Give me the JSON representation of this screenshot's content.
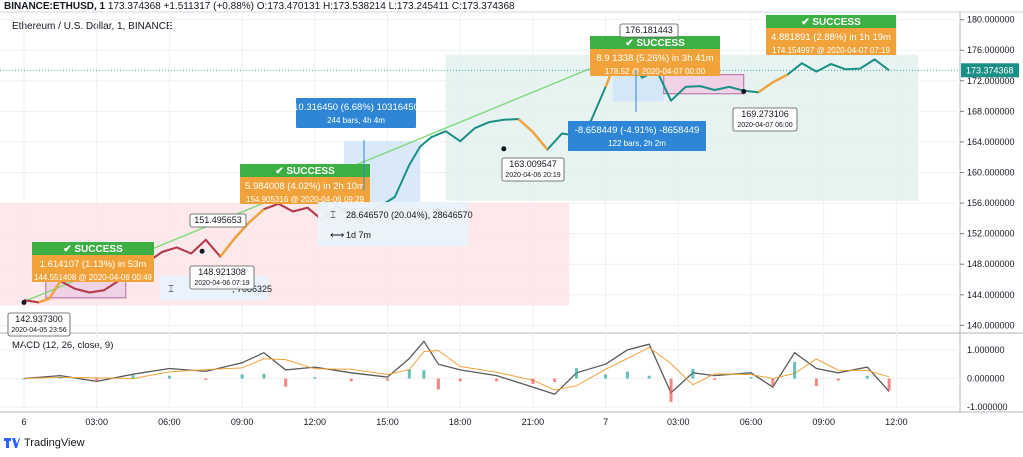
{
  "header": {
    "symbol": "BINANCE:ETHUSD, 1",
    "last": "173.374368",
    "change": "+1.511317 (+0.88%)",
    "o": "O:173.470131",
    "h": "H:173.538214",
    "l": "L:173.245411",
    "c": "C:173.374368"
  },
  "subtitle": "Ethereum / U.S. Dollar, 1, BINANCE",
  "macd_label": "MACD (12, 26, close, 9)",
  "brand": "TradingView",
  "colors": {
    "line": "#1a8f85",
    "line_dark": "#1b6f74",
    "red_segment": "#c0394b",
    "pink_segment": "#e0609a",
    "orange": "#f2a23a",
    "success": "#3cb043",
    "blue_box": "#2f86d6",
    "green_trend": "#7ed87a",
    "price_tag": "#1a8f85"
  },
  "annotations": {
    "success_1": {
      "badge": "✔ SUCCESS",
      "line1": "1.614107 (1.13%) in 53m",
      "line2": "144.551408 @ 2020-04-06 00:49"
    },
    "success_2": {
      "badge": "✔ SUCCESS",
      "line1": "5.984008 (4.02%) in 2h 10m",
      "line2": "154.905316 @ 2020-04-06 09:29"
    },
    "success_3": {
      "badge": "✔ SUCCESS",
      "line1": "8.9 1338 (5.26%) in 3h 41m",
      "line2": "178.52  @ 2020-04-07 00:00"
    },
    "success_4": {
      "badge": "✔ SUCCESS",
      "line1": "4.881891 (2.88%) in 1h 19m",
      "line2": "174.154997 @ 2020-04-07 07:19"
    },
    "blue_1": {
      "line1": "10.316450 (6.68%) 10316450",
      "line2": "244 bars, 4h 4m"
    },
    "blue_2": {
      "line1": "-8.658449 (-4.91%) -8658449",
      "line2": "122 bars, 2h 2m"
    },
    "measure": {
      "line1": "28.646570 (20.04%), 28646570",
      "line2": "1d 7m"
    },
    "measure_partial": ", 7086325",
    "low_1": {
      "value": "142.937300",
      "date": "2020-04-05 23:56"
    },
    "low_2": {
      "value": "148.921308",
      "date": "2020-04-06 07:19"
    },
    "low_3": {
      "value": "163.009547",
      "date": "2020-04-06 20:19"
    },
    "low_4": {
      "value": "169.273106",
      "date": "2020-04-07 06:00"
    },
    "high_1": "151.495653",
    "high_2": "176.181443"
  },
  "chart_data": [
    {
      "type": "line",
      "title": "Ethereum / U.S. Dollar, 1, BINANCE",
      "x_ticks": [
        "6",
        "03:00",
        "06:00",
        "09:00",
        "12:00",
        "15:00",
        "18:00",
        "21:00",
        "7",
        "03:00",
        "06:00",
        "09:00",
        "12:00"
      ],
      "y_ticks": [
        "140.000000",
        "144.000000",
        "148.000000",
        "152.000000",
        "156.000000",
        "160.000000",
        "164.000000",
        "168.000000",
        "172.000000",
        "176.000000",
        "180.000000"
      ],
      "ylim": [
        139,
        181
      ],
      "xlim": [
        -0.35,
        13.1
      ],
      "last_price": "173.374368",
      "series": [
        {
          "x": [
            0,
            0.2,
            0.35,
            0.5,
            0.7,
            0.9,
            1.1,
            1.3,
            1.5,
            1.7,
            1.9,
            2.1,
            2.3,
            2.5,
            2.7,
            2.9,
            3.1,
            3.3,
            3.5,
            3.7,
            3.9,
            4.1,
            4.3,
            4.5,
            4.7,
            4.9,
            5.1,
            5.3,
            5.45,
            5.6,
            5.8,
            6.0,
            6.2,
            6.4,
            6.6,
            6.8,
            7.0,
            7.2,
            7.4,
            7.6,
            7.8,
            8.0,
            8.1,
            8.2,
            8.35,
            8.5,
            8.7,
            8.9,
            9.1,
            9.3,
            9.5,
            9.7,
            9.9,
            10.1,
            10.3,
            10.5,
            10.7,
            10.9,
            11.1,
            11.3,
            11.5,
            11.7,
            11.9
          ],
          "y": [
            143.3,
            143.0,
            143.5,
            145.8,
            144.8,
            144.3,
            144.6,
            145.8,
            147.2,
            148.3,
            149.6,
            150.2,
            149.4,
            151.2,
            149.0,
            151.4,
            153.5,
            155.2,
            155.9,
            154.9,
            155.4,
            153.8,
            155.7,
            154.2,
            154.5,
            155.6,
            156.8,
            161.0,
            163.4,
            164.6,
            165.4,
            164.1,
            165.8,
            166.6,
            166.9,
            167.0,
            165.3,
            163.0,
            165.1,
            164.8,
            166.8,
            171.2,
            173.6,
            175.8,
            175.1,
            172.4,
            173.4,
            169.4,
            171.2,
            171.3,
            170.8,
            171.2,
            170.7,
            170.5,
            171.8,
            172.8,
            174.3,
            173.2,
            174.2,
            173.5,
            173.6,
            174.8,
            173.37
          ]
        }
      ]
    },
    {
      "type": "line",
      "title": "MACD (12, 26, close, 9)",
      "y_ticks": [
        "1.000000",
        "0.000000",
        "-1.000000"
      ],
      "ylim": [
        -1.1,
        1.45
      ],
      "series": [
        {
          "name": "MACD",
          "x": [
            0,
            0.5,
            1.0,
            1.5,
            2.0,
            2.5,
            3.0,
            3.3,
            3.6,
            4.0,
            4.5,
            5.0,
            5.3,
            5.5,
            5.7,
            6.0,
            6.5,
            7.0,
            7.3,
            7.6,
            8.0,
            8.3,
            8.6,
            8.9,
            9.2,
            9.5,
            10.0,
            10.3,
            10.6,
            10.9,
            11.2,
            11.6,
            11.9
          ],
          "y": [
            0.0,
            0.1,
            -0.1,
            0.15,
            0.35,
            0.25,
            0.55,
            0.9,
            0.3,
            0.4,
            0.2,
            0.05,
            0.7,
            1.3,
            0.5,
            0.3,
            0.1,
            -0.3,
            -0.55,
            0.2,
            0.5,
            1.0,
            1.2,
            -0.5,
            0.2,
            0.1,
            0.2,
            -0.3,
            0.9,
            0.35,
            0.2,
            0.4,
            -0.45
          ]
        }
      ]
    }
  ]
}
